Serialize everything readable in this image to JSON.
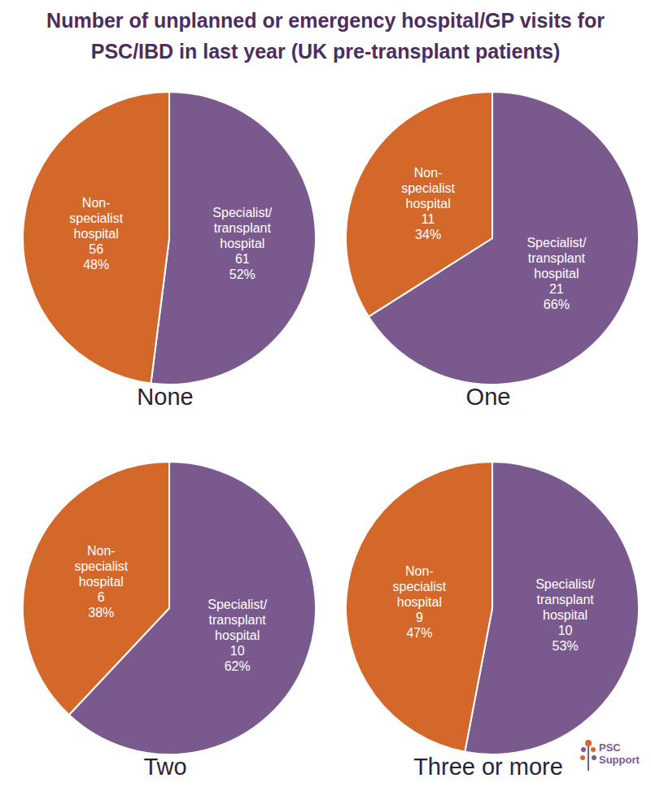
{
  "title": "Number of unplanned or emergency hospital/GP visits for PSC/IBD in last year (UK pre-transplant patients)",
  "logo_text": "PSC Support",
  "chart_data": [
    {
      "type": "pie",
      "title": "None",
      "categories": [
        "Specialist/ transplant hospital",
        "Non-specialist hospital"
      ],
      "values": [
        52,
        48
      ],
      "value_labels": [
        "52%",
        "48%"
      ],
      "counts": [
        61,
        56
      ],
      "colors": [
        "#7a5a8e",
        "#d4682a"
      ],
      "data_labels": true
    },
    {
      "type": "pie",
      "title": "One",
      "categories": [
        "Specialist/ transplant hospital",
        "Non-specialist hospital"
      ],
      "values": [
        66,
        34
      ],
      "value_labels": [
        "66%",
        "34%"
      ],
      "counts": [
        21,
        11
      ],
      "colors": [
        "#7a5a8e",
        "#d4682a"
      ],
      "data_labels": true
    },
    {
      "type": "pie",
      "title": "Two",
      "categories": [
        "Specialist/ transplant hospital",
        "Non-specialist hospital"
      ],
      "values": [
        62,
        38
      ],
      "value_labels": [
        "62%",
        "38%"
      ],
      "counts": [
        10,
        6
      ],
      "colors": [
        "#7a5a8e",
        "#d4682a"
      ],
      "data_labels": true
    },
    {
      "type": "pie",
      "title": "Three or more",
      "categories": [
        "Specialist/ transplant hospital",
        "Non-specialist hospital"
      ],
      "values": [
        53,
        47
      ],
      "value_labels": [
        "53%",
        "47%"
      ],
      "counts": [
        10,
        9
      ],
      "colors": [
        "#7a5a8e",
        "#d4682a"
      ],
      "data_labels": true
    }
  ]
}
